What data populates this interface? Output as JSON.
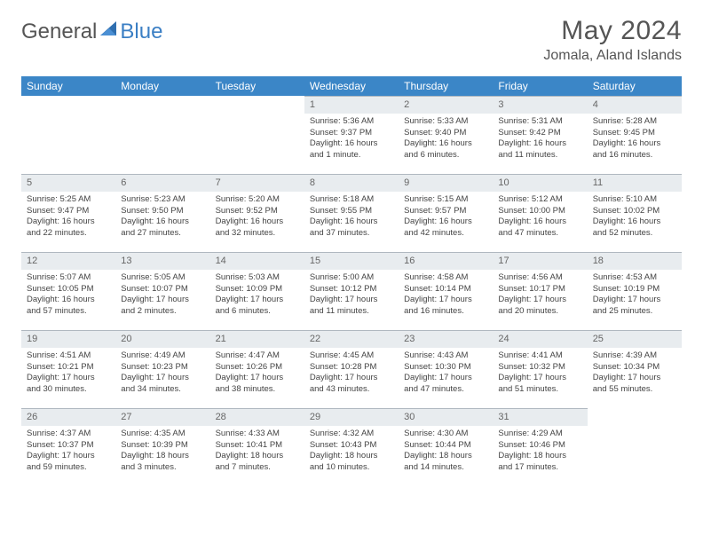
{
  "logo": {
    "word1": "General",
    "word2": "Blue"
  },
  "title": "May 2024",
  "location": "Jomala, Aland Islands",
  "day_headers": [
    "Sunday",
    "Monday",
    "Tuesday",
    "Wednesday",
    "Thursday",
    "Friday",
    "Saturday"
  ],
  "colors": {
    "header_bg": "#3b86c7",
    "header_text": "#ffffff",
    "daynum_bg": "#e8ecef",
    "daynum_border_top": "#b0b8c0",
    "body_text": "#444444",
    "title_text": "#555555"
  },
  "typography": {
    "title_fontsize": 30,
    "location_fontsize": 16,
    "header_fontsize": 12,
    "daynum_fontsize": 11,
    "cell_fontsize": 9.5
  },
  "weeks": [
    [
      null,
      null,
      null,
      {
        "n": "1",
        "sr": "5:36 AM",
        "ss": "9:37 PM",
        "dl": "16 hours and 1 minute."
      },
      {
        "n": "2",
        "sr": "5:33 AM",
        "ss": "9:40 PM",
        "dl": "16 hours and 6 minutes."
      },
      {
        "n": "3",
        "sr": "5:31 AM",
        "ss": "9:42 PM",
        "dl": "16 hours and 11 minutes."
      },
      {
        "n": "4",
        "sr": "5:28 AM",
        "ss": "9:45 PM",
        "dl": "16 hours and 16 minutes."
      }
    ],
    [
      {
        "n": "5",
        "sr": "5:25 AM",
        "ss": "9:47 PM",
        "dl": "16 hours and 22 minutes."
      },
      {
        "n": "6",
        "sr": "5:23 AM",
        "ss": "9:50 PM",
        "dl": "16 hours and 27 minutes."
      },
      {
        "n": "7",
        "sr": "5:20 AM",
        "ss": "9:52 PM",
        "dl": "16 hours and 32 minutes."
      },
      {
        "n": "8",
        "sr": "5:18 AM",
        "ss": "9:55 PM",
        "dl": "16 hours and 37 minutes."
      },
      {
        "n": "9",
        "sr": "5:15 AM",
        "ss": "9:57 PM",
        "dl": "16 hours and 42 minutes."
      },
      {
        "n": "10",
        "sr": "5:12 AM",
        "ss": "10:00 PM",
        "dl": "16 hours and 47 minutes."
      },
      {
        "n": "11",
        "sr": "5:10 AM",
        "ss": "10:02 PM",
        "dl": "16 hours and 52 minutes."
      }
    ],
    [
      {
        "n": "12",
        "sr": "5:07 AM",
        "ss": "10:05 PM",
        "dl": "16 hours and 57 minutes."
      },
      {
        "n": "13",
        "sr": "5:05 AM",
        "ss": "10:07 PM",
        "dl": "17 hours and 2 minutes."
      },
      {
        "n": "14",
        "sr": "5:03 AM",
        "ss": "10:09 PM",
        "dl": "17 hours and 6 minutes."
      },
      {
        "n": "15",
        "sr": "5:00 AM",
        "ss": "10:12 PM",
        "dl": "17 hours and 11 minutes."
      },
      {
        "n": "16",
        "sr": "4:58 AM",
        "ss": "10:14 PM",
        "dl": "17 hours and 16 minutes."
      },
      {
        "n": "17",
        "sr": "4:56 AM",
        "ss": "10:17 PM",
        "dl": "17 hours and 20 minutes."
      },
      {
        "n": "18",
        "sr": "4:53 AM",
        "ss": "10:19 PM",
        "dl": "17 hours and 25 minutes."
      }
    ],
    [
      {
        "n": "19",
        "sr": "4:51 AM",
        "ss": "10:21 PM",
        "dl": "17 hours and 30 minutes."
      },
      {
        "n": "20",
        "sr": "4:49 AM",
        "ss": "10:23 PM",
        "dl": "17 hours and 34 minutes."
      },
      {
        "n": "21",
        "sr": "4:47 AM",
        "ss": "10:26 PM",
        "dl": "17 hours and 38 minutes."
      },
      {
        "n": "22",
        "sr": "4:45 AM",
        "ss": "10:28 PM",
        "dl": "17 hours and 43 minutes."
      },
      {
        "n": "23",
        "sr": "4:43 AM",
        "ss": "10:30 PM",
        "dl": "17 hours and 47 minutes."
      },
      {
        "n": "24",
        "sr": "4:41 AM",
        "ss": "10:32 PM",
        "dl": "17 hours and 51 minutes."
      },
      {
        "n": "25",
        "sr": "4:39 AM",
        "ss": "10:34 PM",
        "dl": "17 hours and 55 minutes."
      }
    ],
    [
      {
        "n": "26",
        "sr": "4:37 AM",
        "ss": "10:37 PM",
        "dl": "17 hours and 59 minutes."
      },
      {
        "n": "27",
        "sr": "4:35 AM",
        "ss": "10:39 PM",
        "dl": "18 hours and 3 minutes."
      },
      {
        "n": "28",
        "sr": "4:33 AM",
        "ss": "10:41 PM",
        "dl": "18 hours and 7 minutes."
      },
      {
        "n": "29",
        "sr": "4:32 AM",
        "ss": "10:43 PM",
        "dl": "18 hours and 10 minutes."
      },
      {
        "n": "30",
        "sr": "4:30 AM",
        "ss": "10:44 PM",
        "dl": "18 hours and 14 minutes."
      },
      {
        "n": "31",
        "sr": "4:29 AM",
        "ss": "10:46 PM",
        "dl": "18 hours and 17 minutes."
      },
      null
    ]
  ],
  "labels": {
    "sunrise": "Sunrise:",
    "sunset": "Sunset:",
    "daylight": "Daylight:"
  }
}
